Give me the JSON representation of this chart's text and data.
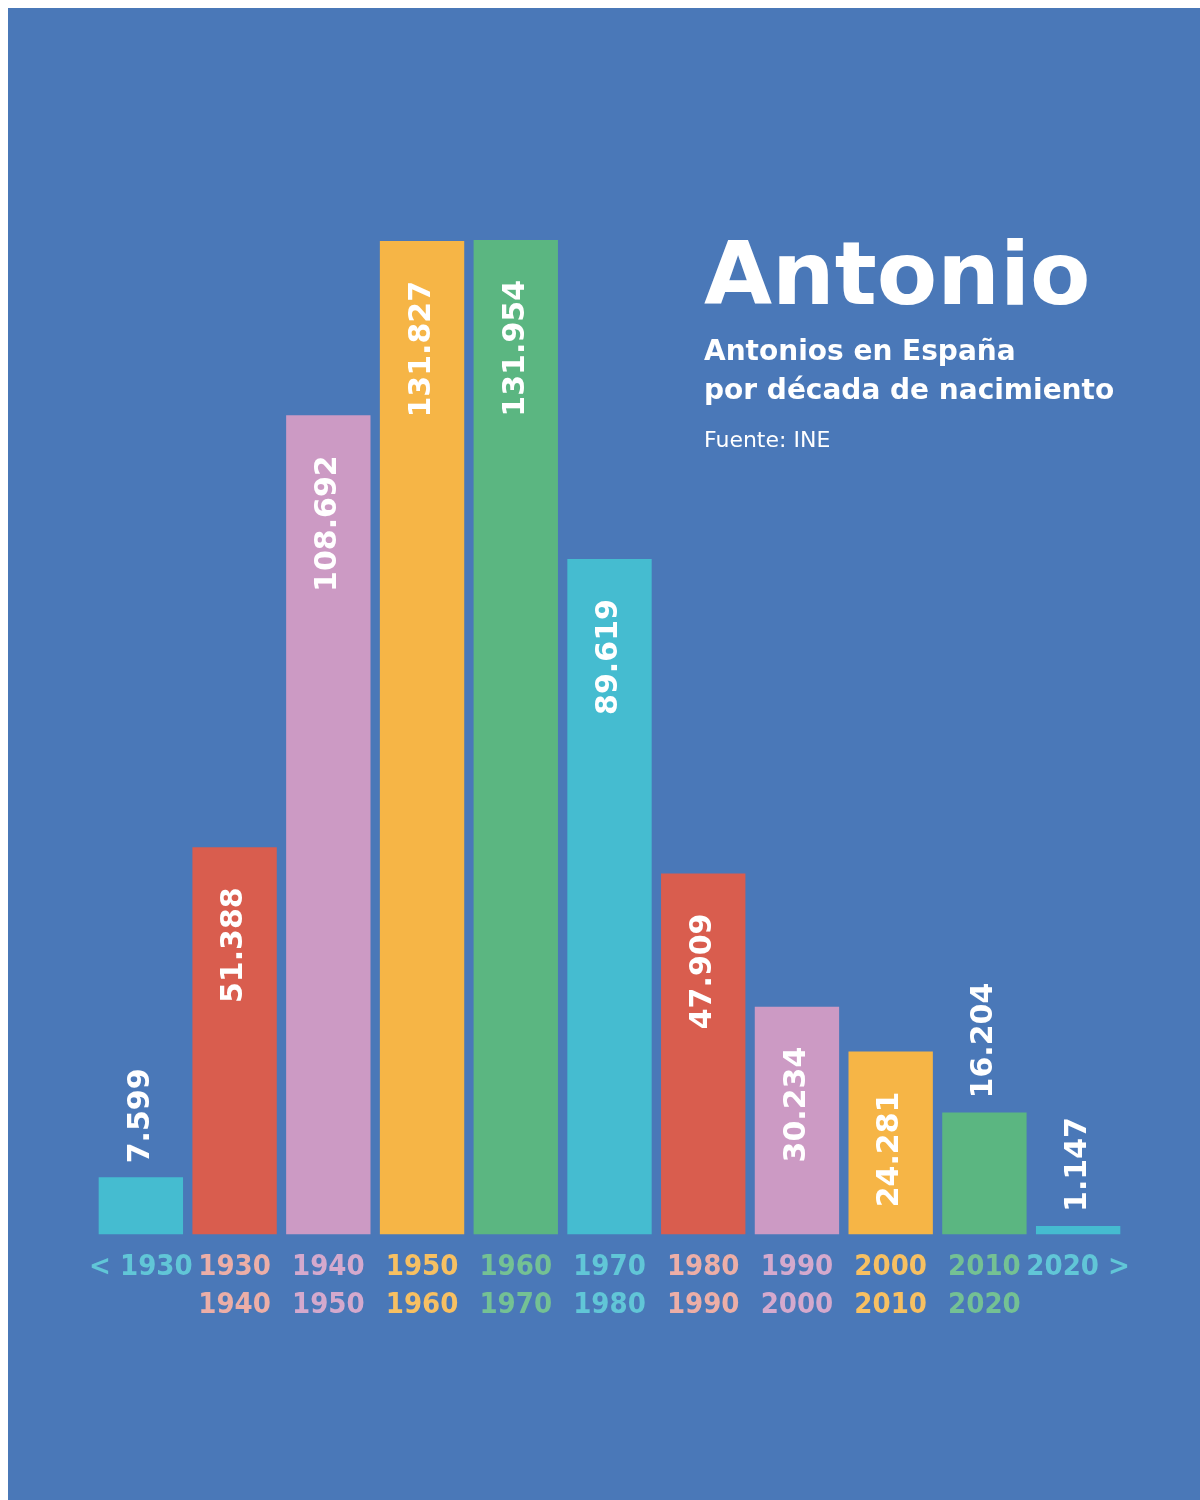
{
  "chart_data": {
    "type": "bar",
    "title": "Antonio",
    "subtitle": "Antonios en España\npor década de nacimiento",
    "annotations": [
      "Fuente: INE"
    ],
    "categories": [
      "< 1930",
      "1930\n1940",
      "1940\n1950",
      "1950\n1960",
      "1960\n1970",
      "1970\n1980",
      "1980\n1990",
      "1990\n2000",
      "2000\n2010",
      "2010\n2020",
      "2020 >"
    ],
    "values": [
      7599,
      51388,
      108692,
      131827,
      131954,
      89619,
      47909,
      30234,
      24281,
      16204,
      1147
    ],
    "value_labels": [
      "7.599",
      "51.388",
      "108.692",
      "131.827",
      "131.954",
      "89.619",
      "47.909",
      "30.234",
      "24.281",
      "16.204",
      "1.147"
    ],
    "colors": [
      "#45bcd0",
      "#d95d4e",
      "#cc9ac4",
      "#f6b546",
      "#5bb681",
      "#45bcd0",
      "#d95d4e",
      "#cc9ac4",
      "#f6b546",
      "#5bb681",
      "#45bcd0"
    ],
    "grid": false,
    "legend": false
  }
}
